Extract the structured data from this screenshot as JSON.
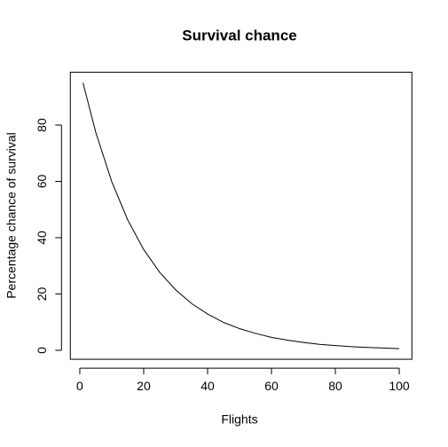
{
  "chart_data": {
    "type": "line",
    "title": "Survival chance",
    "x_label": "Flights",
    "y_label": "Percentage chance of survival",
    "x": [
      1,
      5,
      10,
      15,
      20,
      25,
      30,
      35,
      40,
      45,
      50,
      55,
      60,
      65,
      70,
      75,
      80,
      85,
      90,
      95,
      100
    ],
    "values": [
      95,
      77.4,
      59.9,
      46.3,
      35.8,
      27.7,
      21.5,
      16.6,
      12.9,
      9.9,
      7.7,
      6.0,
      4.6,
      3.6,
      2.8,
      2.1,
      1.7,
      1.3,
      1.0,
      0.8,
      0.6
    ],
    "color": "#000000",
    "xlim": [
      -2.96,
      103.96
    ],
    "xticks": [
      0,
      20,
      40,
      60,
      80,
      100
    ],
    "ylim": [
      -3.19,
      98.78
    ],
    "yticks": [
      0,
      20,
      40,
      60,
      80
    ]
  }
}
